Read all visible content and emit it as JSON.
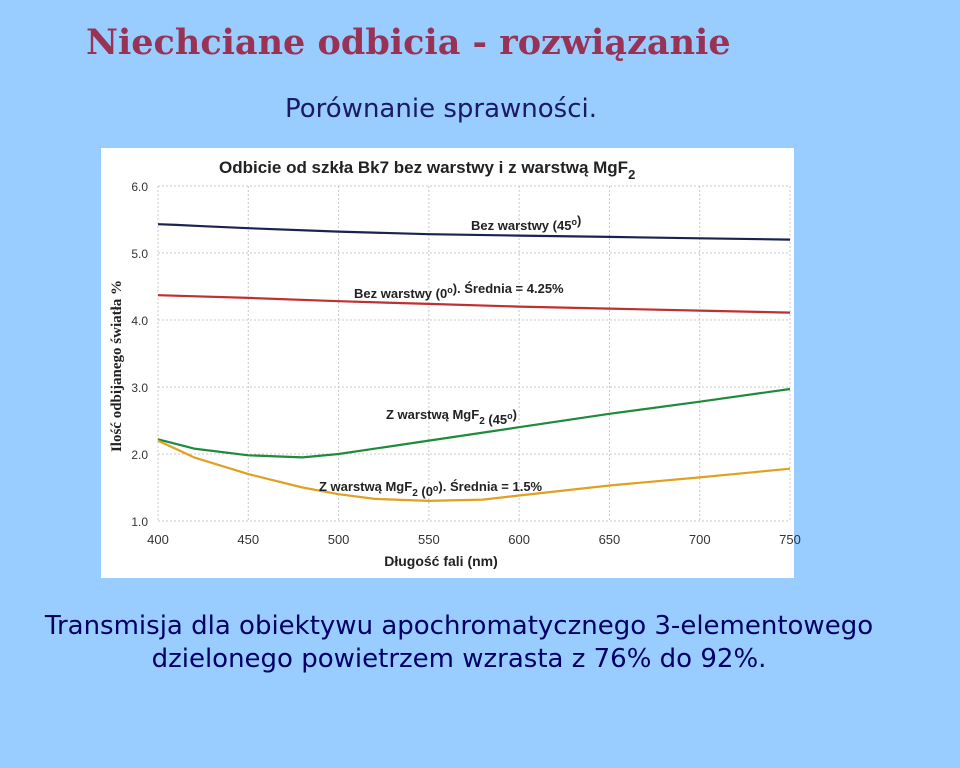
{
  "title": "Niechciane odbicia - rozwiązanie",
  "subtitle": "Porównanie sprawności.",
  "footer": {
    "line1": "Transmisja dla obiektywu apochromatycznego 3-elementowego",
    "line2": "dzielonego powietrzem wzrasta z 76% do 92%."
  },
  "chart_data": {
    "type": "line",
    "title": "Odbicie od szkła Bk7 bez warstwy i z warstwą MgF",
    "title_subscript": "2",
    "xlabel": "Długość fali (nm)",
    "ylabel": "Ilość odbijanego światła %",
    "xlim": [
      400,
      750
    ],
    "ylim": [
      1.0,
      6.0
    ],
    "x_ticks": [
      "400",
      "450",
      "500",
      "550",
      "600",
      "650",
      "700",
      "750"
    ],
    "y_ticks": [
      "1.0",
      "2.0",
      "3.0",
      "4.0",
      "5.0",
      "6.0"
    ],
    "grid": true,
    "series": [
      {
        "label_parts": [
          "Bez warstwy (45",
          "°",
          ")"
        ],
        "color": "#1a2250",
        "x": [
          400,
          410,
          425,
          450,
          500,
          550,
          600,
          650,
          700,
          750
        ],
        "y": [
          5.43,
          5.42,
          5.4,
          5.37,
          5.32,
          5.28,
          5.26,
          5.24,
          5.22,
          5.2
        ]
      },
      {
        "label_parts": [
          "Bez warstwy (0",
          "°",
          "). Średnia = 4.25%"
        ],
        "color": "#c03030",
        "x": [
          400,
          450,
          500,
          550,
          600,
          650,
          700,
          750
        ],
        "y": [
          4.37,
          4.33,
          4.28,
          4.24,
          4.2,
          4.17,
          4.14,
          4.11
        ]
      },
      {
        "label_parts": [
          "Z warstwą MgF",
          "2",
          " (45",
          "°",
          ")"
        ],
        "color": "#1e8a3a",
        "x": [
          400,
          420,
          450,
          480,
          500,
          550,
          600,
          650,
          700,
          750
        ],
        "y": [
          2.22,
          2.08,
          1.98,
          1.95,
          2.0,
          2.2,
          2.4,
          2.6,
          2.78,
          2.97
        ]
      },
      {
        "label_parts": [
          "Z warstwą MgF",
          "2",
          " (0",
          "°",
          "). Średnia = 1.5%"
        ],
        "color": "#e0a020",
        "x": [
          400,
          420,
          450,
          480,
          500,
          520,
          550,
          580,
          600,
          650,
          700,
          750
        ],
        "y": [
          2.2,
          1.95,
          1.7,
          1.5,
          1.4,
          1.33,
          1.3,
          1.32,
          1.38,
          1.53,
          1.65,
          1.78
        ]
      }
    ]
  }
}
